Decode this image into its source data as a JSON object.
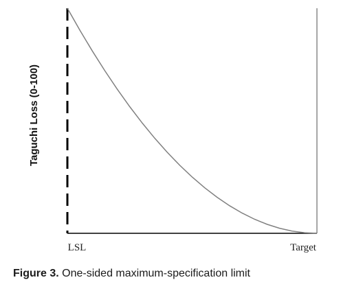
{
  "chart_data": {
    "type": "line",
    "title": "",
    "xlabel": "",
    "ylabel": "Taguchi Loss (0-100)",
    "x_ticks": [
      "LSL",
      "Target"
    ],
    "ylim": [
      0,
      100
    ],
    "series": [
      {
        "x": [
          0,
          0.05,
          0.1,
          0.15,
          0.2,
          0.25,
          0.3,
          0.35,
          0.4,
          0.45,
          0.5,
          0.55,
          0.6,
          0.65,
          0.7,
          0.75,
          0.8,
          0.85,
          0.9,
          0.95,
          1
        ],
        "y": [
          100,
          90.25,
          81,
          72.25,
          64,
          56.25,
          49,
          42.25,
          36,
          30.25,
          25,
          20.25,
          16,
          12.25,
          9,
          6.25,
          4,
          2.25,
          1,
          0.25,
          0
        ]
      }
    ],
    "reference_lines": [
      {
        "label": "LSL",
        "style": "dashed"
      },
      {
        "label": "Target",
        "style": "solid"
      }
    ],
    "grid": false,
    "colors": {
      "curve": "#808080",
      "lsl_line": "#000000",
      "target_line": "#a6a6a6",
      "axis": "#000000"
    }
  },
  "caption": {
    "label": "Figure 3.",
    "text": "One-sided maximum-specification limit"
  }
}
